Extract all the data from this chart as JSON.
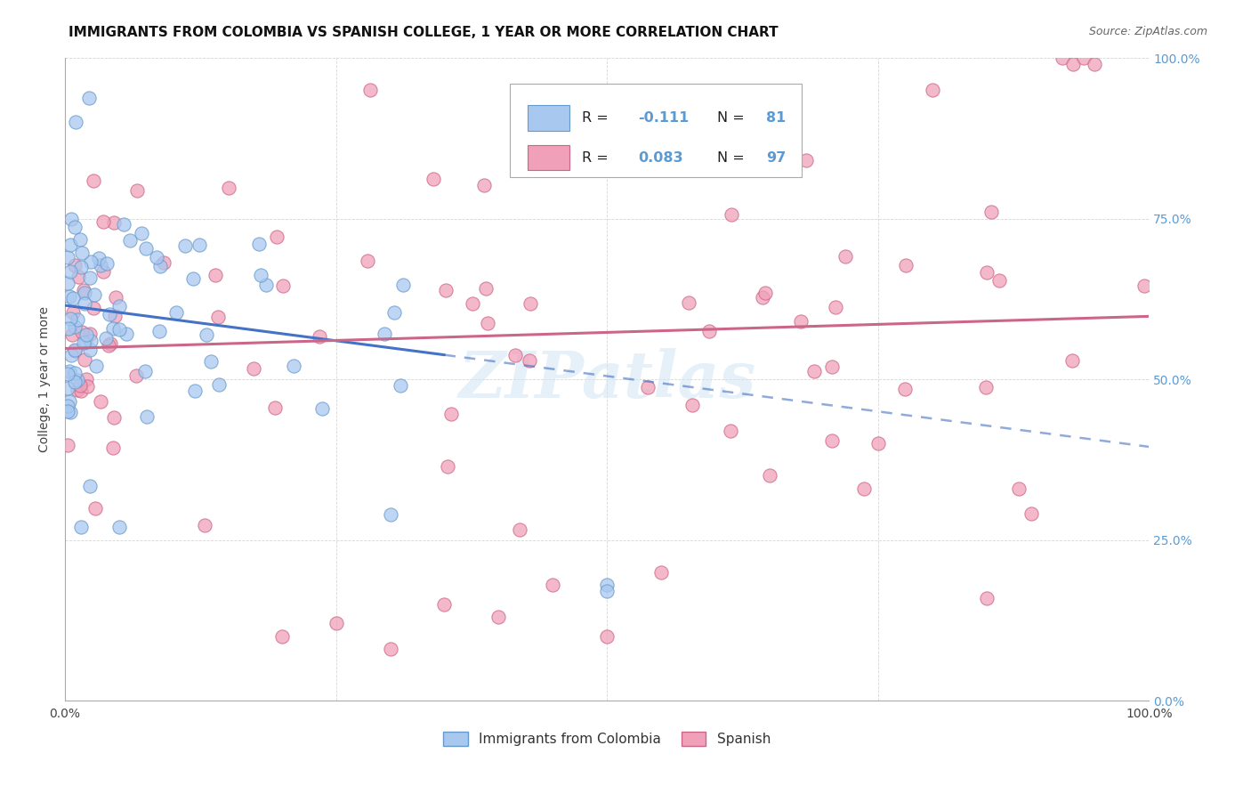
{
  "title": "IMMIGRANTS FROM COLOMBIA VS SPANISH COLLEGE, 1 YEAR OR MORE CORRELATION CHART",
  "source": "Source: ZipAtlas.com",
  "ylabel": "College, 1 year or more",
  "right_yticks": [
    "0.0%",
    "25.0%",
    "50.0%",
    "75.0%",
    "100.0%"
  ],
  "right_ytick_vals": [
    0.0,
    0.25,
    0.5,
    0.75,
    1.0
  ],
  "legend_label1": "Immigrants from Colombia",
  "legend_label2": "Spanish",
  "color_blue": "#a8c8f0",
  "color_blue_edge": "#6699cc",
  "color_pink": "#f0a0b8",
  "color_pink_edge": "#cc6688",
  "color_line_blue": "#4472c4",
  "color_line_pink": "#cc6688",
  "color_right_axis": "#5b9bd5",
  "watermark": "ZIPatlas",
  "xlim": [
    0.0,
    1.0
  ],
  "ylim": [
    0.0,
    1.0
  ],
  "grid_color": "#cccccc",
  "bg_color": "#ffffff",
  "title_fontsize": 11,
  "source_fontsize": 9,
  "blue_line_start_x": 0.0,
  "blue_line_start_y": 0.615,
  "blue_line_end_x": 1.0,
  "blue_line_end_y": 0.395,
  "pink_line_start_x": 0.0,
  "pink_line_start_y": 0.548,
  "pink_line_end_x": 1.0,
  "pink_line_end_y": 0.598
}
